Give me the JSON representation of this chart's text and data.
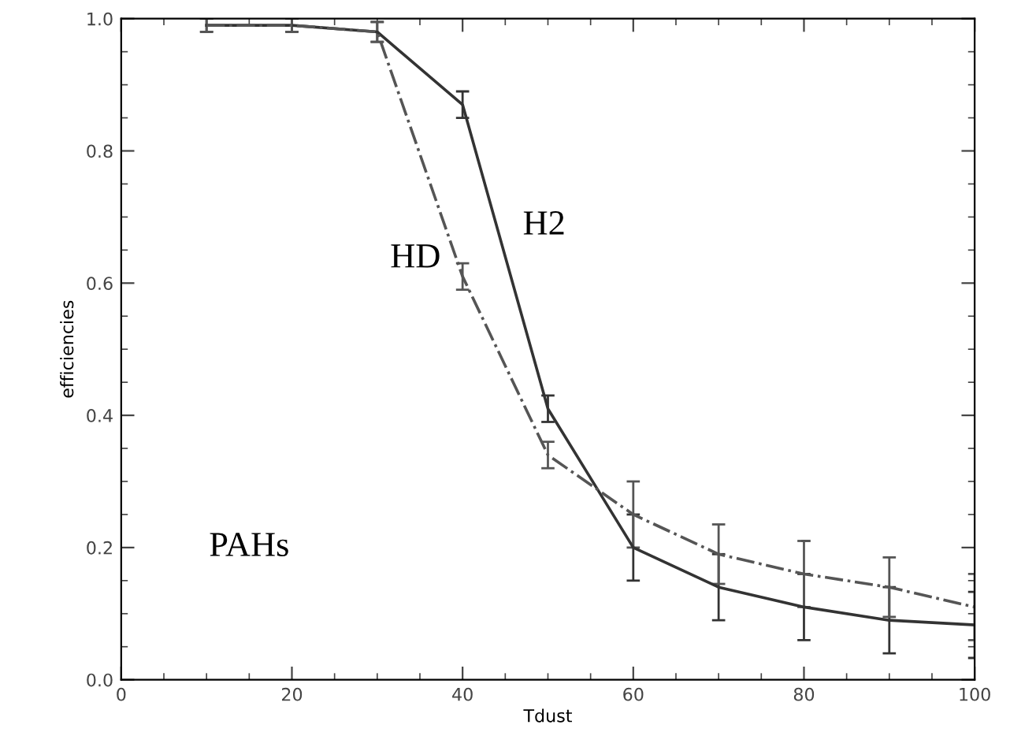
{
  "chart_data": {
    "type": "line",
    "xlabel": "Tdust",
    "ylabel": "efficiencies",
    "x": [
      10,
      20,
      30,
      40,
      50,
      60,
      70,
      80,
      90,
      100
    ],
    "series": [
      {
        "name": "H2",
        "color": "#333333",
        "line_style": "solid",
        "values": [
          0.99,
          0.99,
          0.98,
          0.87,
          0.41,
          0.2,
          0.14,
          0.11,
          0.09,
          0.083
        ],
        "errors": [
          0.01,
          0.01,
          0.015,
          0.02,
          0.02,
          0.05,
          0.05,
          0.05,
          0.05,
          0.05
        ]
      },
      {
        "name": "HD",
        "color": "#555555",
        "line_style": "dashdot",
        "values": [
          0.99,
          0.99,
          0.98,
          0.61,
          0.34,
          0.25,
          0.19,
          0.16,
          0.14,
          0.11
        ],
        "errors": [
          0.01,
          0.01,
          0.015,
          0.02,
          0.02,
          0.05,
          0.045,
          0.05,
          0.045,
          0.05
        ]
      }
    ],
    "annotations": [
      "PAHs"
    ],
    "xlim": [
      0,
      100
    ],
    "ylim": [
      0,
      1.0
    ],
    "xticks": [
      0,
      20,
      40,
      60,
      80,
      100
    ],
    "yticks": [
      {
        "value": 0,
        "label": "0.0"
      },
      0.2,
      0.4,
      0.6,
      0.8,
      {
        "value": 1.0,
        "label": "1.0"
      }
    ],
    "grid": false,
    "legend": false,
    "marker": "none"
  }
}
